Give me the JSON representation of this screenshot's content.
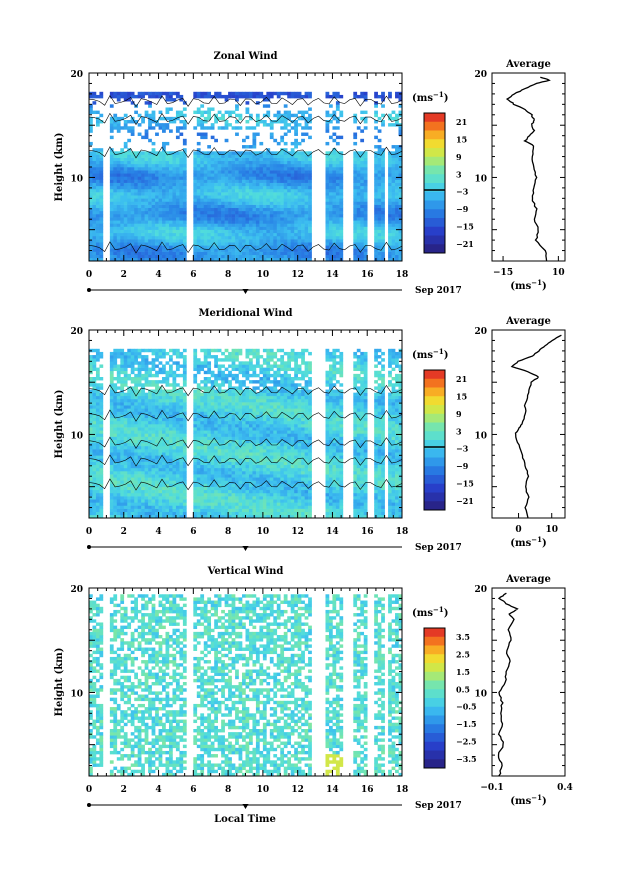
{
  "xlabel": "Local Time",
  "date_label": "Sep 2017",
  "ylabel": "Height (km)",
  "unit_label": "(ms",
  "unit_exp": "−1",
  "panels": [
    {
      "title": "Zonal Wind",
      "avg_title": "Average",
      "colorbar_ticks": [
        "21",
        "15",
        "9",
        "3",
        "−3",
        "−9",
        "−15",
        "−21"
      ],
      "colorbar_range": [
        -24,
        24
      ],
      "avg_xticks": [
        "−15",
        "10"
      ],
      "avg_xrange": [
        -20,
        13
      ],
      "avg_profile": [
        [
          2,
          5
        ],
        [
          3,
          4
        ],
        [
          4,
          0
        ],
        [
          5,
          1
        ],
        [
          6,
          -1
        ],
        [
          7,
          0
        ],
        [
          8,
          -2
        ],
        [
          9,
          -1
        ],
        [
          10,
          0
        ],
        [
          11,
          -1
        ],
        [
          12,
          -2
        ],
        [
          13,
          -1
        ],
        [
          13.5,
          -5
        ],
        [
          14,
          -3
        ],
        [
          14.5,
          -1
        ],
        [
          15,
          -2
        ],
        [
          15.5,
          -1
        ],
        [
          16,
          -2
        ],
        [
          16.5,
          -5
        ],
        [
          17,
          -10
        ],
        [
          17.5,
          -13
        ],
        [
          18,
          -10
        ],
        [
          18.5,
          -5
        ],
        [
          19,
          0
        ],
        [
          19.3,
          6
        ],
        [
          19.6,
          2
        ]
      ]
    },
    {
      "title": "Meridional Wind",
      "avg_title": "Average",
      "colorbar_ticks": [
        "21",
        "15",
        "9",
        "3",
        "−3",
        "−9",
        "−15",
        "−21"
      ],
      "colorbar_range": [
        -24,
        24
      ],
      "avg_xticks": [
        "0",
        "10"
      ],
      "avg_xrange": [
        -8,
        14
      ],
      "avg_profile": [
        [
          2,
          3
        ],
        [
          3,
          2
        ],
        [
          4,
          3
        ],
        [
          5,
          2
        ],
        [
          6,
          3
        ],
        [
          7,
          2
        ],
        [
          8,
          1
        ],
        [
          9,
          0
        ],
        [
          10,
          -1
        ],
        [
          10.5,
          0
        ],
        [
          11,
          1
        ],
        [
          12,
          2
        ],
        [
          13,
          2
        ],
        [
          14,
          3
        ],
        [
          15,
          4
        ],
        [
          15.5,
          6
        ],
        [
          16,
          3
        ],
        [
          16.5,
          -2
        ],
        [
          17,
          0
        ],
        [
          17.5,
          4
        ],
        [
          18,
          6
        ],
        [
          18.5,
          8
        ],
        [
          19,
          10
        ],
        [
          19.5,
          13
        ]
      ]
    },
    {
      "title": "Vertical Wind",
      "avg_title": "Average",
      "colorbar_ticks": [
        "3.5",
        "2.5",
        "1.5",
        "0.5",
        "−0.5",
        "−1.5",
        "−2.5",
        "−3.5"
      ],
      "colorbar_range": [
        -4,
        4
      ],
      "avg_xticks": [
        "−0.1",
        "0.4"
      ],
      "avg_xrange": [
        -0.1,
        0.4
      ],
      "avg_profile": [
        [
          2,
          -0.05
        ],
        [
          3,
          -0.03
        ],
        [
          4,
          -0.06
        ],
        [
          5,
          -0.02
        ],
        [
          6,
          -0.05
        ],
        [
          7,
          -0.03
        ],
        [
          8,
          -0.04
        ],
        [
          9,
          -0.03
        ],
        [
          10,
          -0.05
        ],
        [
          11,
          -0.01
        ],
        [
          12,
          0.0
        ],
        [
          13,
          0.02
        ],
        [
          14,
          0.0
        ],
        [
          15,
          0.03
        ],
        [
          16,
          0.01
        ],
        [
          17,
          0.05
        ],
        [
          17.5,
          0.02
        ],
        [
          18,
          0.07
        ],
        [
          18.5,
          0.0
        ],
        [
          19,
          -0.05
        ],
        [
          19.5,
          0.0
        ]
      ]
    }
  ],
  "chart_data": [
    {
      "type": "heatmap",
      "title": "Zonal Wind",
      "xlabel": "",
      "ylabel": "Height (km)",
      "xlim": [
        0,
        18
      ],
      "ylim": [
        2,
        20
      ],
      "x_ticks": [
        "0",
        "2",
        "4",
        "6",
        "8",
        "10",
        "12",
        "14",
        "16",
        "18"
      ],
      "y_ticks": [
        "20",
        "10"
      ],
      "colorbar_label": "(ms−1)",
      "colorbar_ticks": [
        21,
        15,
        9,
        3,
        -3,
        -9,
        -15,
        -21
      ]
    },
    {
      "type": "line",
      "title": "Average",
      "xlabel": "(ms−1)",
      "ylabel": "",
      "x_ticks": [
        "−15",
        "10"
      ],
      "y_ticks": [
        "20",
        "10"
      ],
      "ylim": [
        2,
        20
      ]
    },
    {
      "type": "heatmap",
      "title": "Meridional Wind",
      "xlabel": "",
      "ylabel": "Height (km)",
      "xlim": [
        0,
        18
      ],
      "ylim": [
        2,
        20
      ],
      "x_ticks": [
        "0",
        "2",
        "4",
        "6",
        "8",
        "10",
        "12",
        "14",
        "16",
        "18"
      ],
      "y_ticks": [
        "20",
        "10"
      ],
      "colorbar_label": "(ms−1)",
      "colorbar_ticks": [
        21,
        15,
        9,
        3,
        -3,
        -9,
        -15,
        -21
      ]
    },
    {
      "type": "line",
      "title": "Average",
      "xlabel": "(ms−1)",
      "ylabel": "",
      "x_ticks": [
        "0",
        "10"
      ],
      "y_ticks": [
        "20",
        "10"
      ],
      "ylim": [
        2,
        20
      ]
    },
    {
      "type": "heatmap",
      "title": "Vertical Wind",
      "xlabel": "Local Time",
      "ylabel": "Height (km)",
      "xlim": [
        0,
        18
      ],
      "ylim": [
        2,
        20
      ],
      "x_ticks": [
        "0",
        "2",
        "4",
        "6",
        "8",
        "10",
        "12",
        "14",
        "16",
        "18"
      ],
      "y_ticks": [
        "20",
        "10"
      ],
      "colorbar_label": "(ms−1)",
      "colorbar_ticks": [
        3.5,
        2.5,
        1.5,
        0.5,
        -0.5,
        -1.5,
        -2.5,
        -3.5
      ]
    },
    {
      "type": "line",
      "title": "Average",
      "xlabel": "(ms−1)",
      "ylabel": "",
      "x_ticks": [
        "−0.1",
        "0.4"
      ],
      "y_ticks": [
        "20",
        "10"
      ],
      "ylim": [
        2,
        20
      ]
    }
  ]
}
